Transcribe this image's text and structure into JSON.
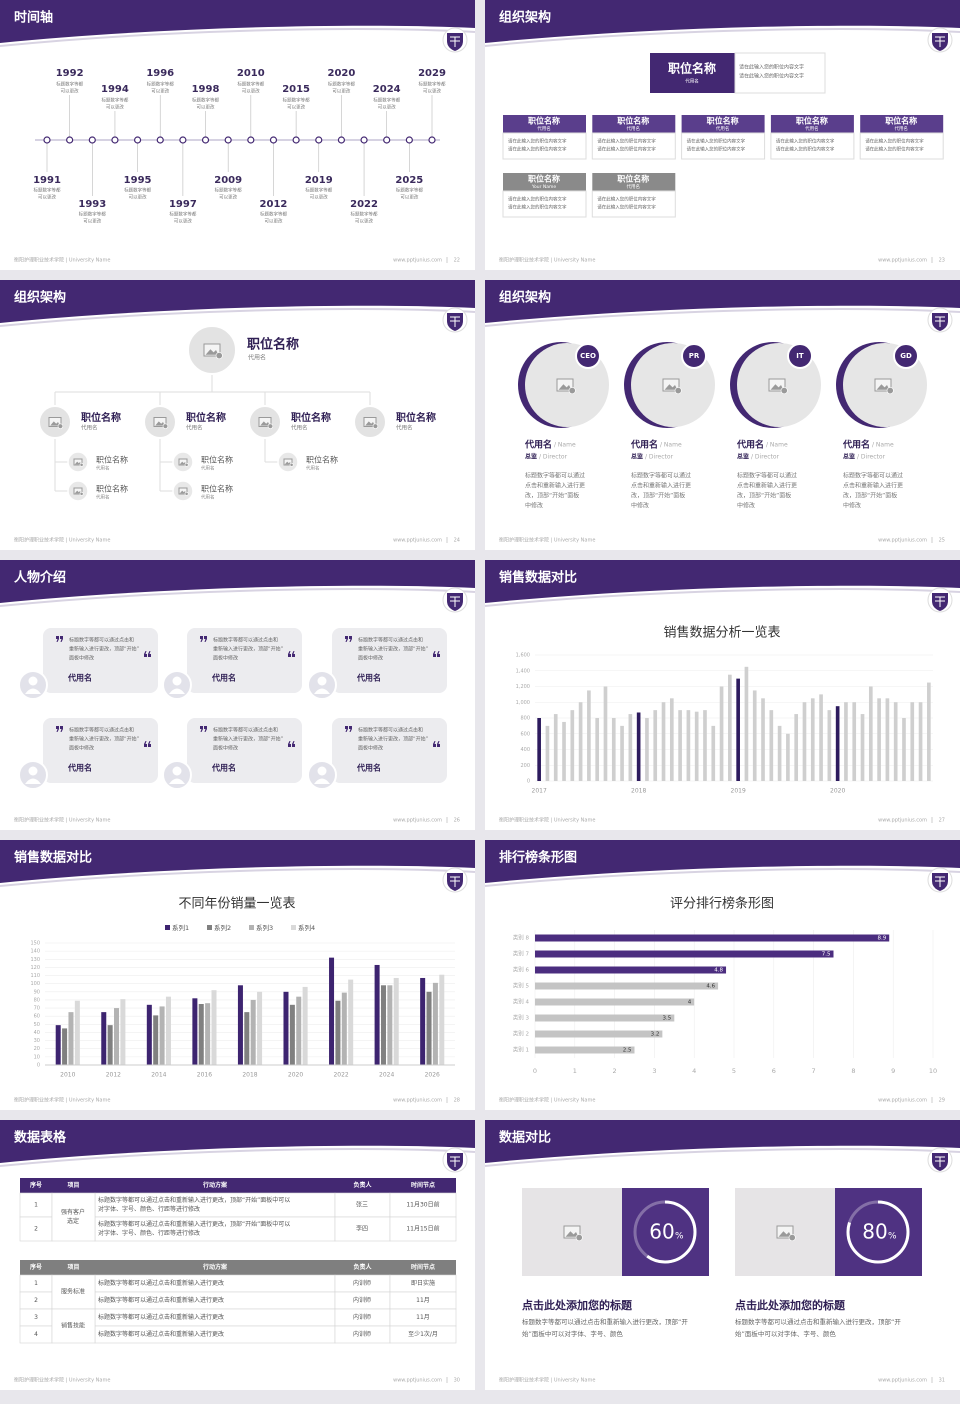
{
  "footer": {
    "left": "衡阳护理职业技术学院 | University Name",
    "url": "www.pptjunius.com"
  },
  "slides": [
    {
      "title": "时间轴",
      "page": "22",
      "events": [
        "1991",
        "1992",
        "1993",
        "1994",
        "1995",
        "1996",
        "1997",
        "1998",
        "2009",
        "2010",
        "2012",
        "2015",
        "2019",
        "2020",
        "2022",
        "2024",
        "2025",
        "2029"
      ],
      "desc": [
        "标题数字等都",
        "可以更改"
      ]
    },
    {
      "title": "组织架构",
      "page": "23",
      "top": {
        "title": "职位名称",
        "sub": "代用名",
        "text": [
          "请在此输入您的职位内容文字",
          "请在此输入您的职位内容文字"
        ]
      },
      "boxes": [
        {
          "title": "职位名称",
          "sub": "代用名",
          "color": "#5a3e8c",
          "text": [
            "请在此输入您的职位内容文字",
            "请在此输入您的职位内容文字"
          ]
        },
        {
          "title": "职位名称",
          "sub": "代用名",
          "color": "#5a3e8c",
          "text": [
            "请在此输入您的职位内容文字",
            "请在此输入您的职位内容文字"
          ]
        },
        {
          "title": "职位名称",
          "sub": "代用名",
          "color": "#5a3e8c",
          "text": [
            "请在此输入您的职位内容文字",
            "请在此输入您的职位内容文字"
          ]
        },
        {
          "title": "职位名称",
          "sub": "代用名",
          "color": "#5a3e8c",
          "text": [
            "请在此输入您的职位内容文字",
            "请在此输入您的职位内容文字"
          ]
        },
        {
          "title": "职位名称",
          "sub": "代用名",
          "color": "#5a3e8c",
          "text": [
            "请在此输入您的职位内容文字",
            "请在此输入您的职位内容文字"
          ]
        },
        {
          "title": "职位名称",
          "sub": "Your Name",
          "color": "#8a8a8a",
          "text": [
            "请在此输入您的职位内容文字",
            "请在此输入您的职位内容文字"
          ]
        },
        {
          "title": "职位名称",
          "sub": "代用名",
          "color": "#8a8a8a",
          "text": [
            "请在此输入您的职位内容文字",
            "请在此输入您的职位内容文字"
          ]
        }
      ]
    },
    {
      "title": "组织架构",
      "page": "24",
      "root": {
        "title": "职位名称",
        "sub": "代用名"
      },
      "nodes": [
        {
          "title": "职位名称",
          "sub": "代用名",
          "children": [
            {
              "title": "职位名称",
              "sub": "代用名"
            },
            {
              "title": "职位名称",
              "sub": "代用名"
            }
          ]
        },
        {
          "title": "职位名称",
          "sub": "代用名",
          "children": [
            {
              "title": "职位名称",
              "sub": "代用名"
            },
            {
              "title": "职位名称",
              "sub": "代用名"
            }
          ]
        },
        {
          "title": "职位名称",
          "sub": "代用名",
          "children": [
            {
              "title": "职位名称",
              "sub": "代用名"
            }
          ]
        },
        {
          "title": "职位名称",
          "sub": "代用名",
          "children": []
        }
      ]
    },
    {
      "title": "组织架构",
      "page": "25",
      "cards": [
        {
          "badge": "CEO",
          "name": "代用名",
          "name_en": "/ Name",
          "role": "总监",
          "role_en": "/ Director",
          "desc": [
            "标题数字等都可以通过",
            "点击和重新输入进行更",
            "改，顶部“开始”面板",
            "中修改"
          ]
        },
        {
          "badge": "PR",
          "name": "代用名",
          "name_en": "/ Name",
          "role": "总监",
          "role_en": "/ Director",
          "desc": [
            "标题数字等都可以通过",
            "点击和重新输入进行更",
            "改，顶部“开始”面板",
            "中修改"
          ]
        },
        {
          "badge": "IT",
          "name": "代用名",
          "name_en": "/ Name",
          "role": "总监",
          "role_en": "/ Director",
          "desc": [
            "标题数字等都可以通过",
            "点击和重新输入进行更",
            "改，顶部“开始”面板",
            "中修改"
          ]
        },
        {
          "badge": "GD",
          "name": "代用名",
          "name_en": "/ Name",
          "role": "总监",
          "role_en": "/ Director",
          "desc": [
            "标题数字等都可以通过",
            "点击和重新输入进行更",
            "改，顶部“开始”面板",
            "中修改"
          ]
        }
      ]
    },
    {
      "title": "人物介绍",
      "page": "26",
      "people": [
        {
          "quote": [
            "标题数字等都可以通过点击和",
            "重新输入进行更改，顶部“开始”",
            "面板中修改"
          ],
          "name": "代用名"
        },
        {
          "quote": [
            "标题数字等都可以通过点击和",
            "重新输入进行更改，顶部“开始”",
            "面板中修改"
          ],
          "name": "代用名"
        },
        {
          "quote": [
            "标题数字等都可以通过点击和",
            "重新输入进行更改，顶部“开始”",
            "面板中修改"
          ],
          "name": "代用名"
        },
        {
          "quote": [
            "标题数字等都可以通过点击和",
            "重新输入进行更改，顶部“开始”",
            "面板中修改"
          ],
          "name": "代用名"
        },
        {
          "quote": [
            "标题数字等都可以通过点击和",
            "重新输入进行更改，顶部“开始”",
            "面板中修改"
          ],
          "name": "代用名"
        },
        {
          "quote": [
            "标题数字等都可以通过点击和",
            "重新输入进行更改，顶部“开始”",
            "面板中修改"
          ],
          "name": "代用名"
        }
      ]
    },
    {
      "title": "销售数据对比",
      "page": "27",
      "chart": {
        "type": "bar",
        "title": "销售数据分析一览表",
        "categories": [
          "2017",
          null,
          null,
          null,
          null,
          null,
          null,
          null,
          null,
          null,
          null,
          null,
          "2018",
          null,
          null,
          null,
          null,
          null,
          null,
          null,
          null,
          null,
          null,
          null,
          "2019",
          null,
          null,
          null,
          null,
          null,
          null,
          null,
          null,
          null,
          null,
          null,
          "2020",
          null,
          null,
          null,
          null,
          null,
          null,
          null,
          null,
          null,
          null,
          null
        ],
        "values": [
          800,
          700,
          850,
          750,
          900,
          1000,
          1150,
          800,
          1200,
          800,
          700,
          850,
          870,
          800,
          900,
          1000,
          1050,
          900,
          900,
          880,
          900,
          700,
          1200,
          1350,
          1300,
          1450,
          1150,
          1050,
          900,
          700,
          600,
          850,
          1000,
          1050,
          1100,
          900,
          950,
          1000,
          1000,
          850,
          1200,
          1050,
          1050,
          1000,
          800,
          1000,
          1000,
          1250
        ],
        "color": "#cfcfcf",
        "highlight": {
          "indices": [
            0,
            12,
            24,
            36
          ],
          "color": "#2d1b5e"
        },
        "ylim": [
          0,
          1600
        ],
        "yticks": [
          0,
          200,
          400,
          600,
          800,
          {
            "value": 1000,
            "label": "1,000"
          },
          {
            "value": 1200,
            "label": "1,200"
          },
          {
            "value": 1400,
            "label": "1,400"
          },
          {
            "value": 1600,
            "label": "1,600"
          }
        ],
        "grid": true
      }
    },
    {
      "title": "销售数据对比",
      "page": "28",
      "chart": {
        "type": "grouped-bar",
        "title": "不同年份销量一览表",
        "categories": [
          "2010",
          "2012",
          "2014",
          "2016",
          "2018",
          "2020",
          "2022",
          "2024",
          "2026"
        ],
        "series": [
          {
            "name": "系列1",
            "color": "#3d2470",
            "values": [
              49,
              65,
              74,
              82,
              98,
              90,
              132,
              123,
              107
            ]
          },
          {
            "name": "系列2",
            "color": "#808080",
            "values": [
              45,
              49,
              61,
              75,
              65,
              74,
              79,
              98,
              90
            ]
          },
          {
            "name": "系列3",
            "color": "#b3b3b3",
            "values": [
              65,
              70,
              72,
              76,
              80,
              84,
              89,
              98,
              101
            ]
          },
          {
            "name": "系列4",
            "color": "#d9d9d9",
            "values": [
              79,
              81,
              84,
              92,
              90,
              96,
              105,
              107,
              111
            ]
          }
        ],
        "ylim": [
          0,
          150
        ],
        "yticks": [
          0,
          10,
          20,
          30,
          40,
          50,
          60,
          70,
          80,
          90,
          100,
          110,
          120,
          130,
          140,
          150
        ],
        "legend": "top",
        "grid": true
      }
    },
    {
      "title": "排行榜条形图",
      "page": "29",
      "chart": {
        "type": "hbar",
        "title": "评分排行榜条形图",
        "categories": [
          "类别 1",
          "类别 2",
          "类别 3",
          "类别 4",
          "类别 5",
          "类别 6",
          "类别 7",
          "类别 8"
        ],
        "values": [
          2.5,
          3.2,
          3.5,
          4,
          4.6,
          4.8,
          7.5,
          8.9
        ],
        "colors": [
          "#c4c4c4",
          "#c4c4c4",
          "#c4c4c4",
          "#c4c4c4",
          "#c4c4c4",
          "#4b2d7f",
          "#4b2d7f",
          "#4b2d7f"
        ],
        "xlim": [
          0,
          10
        ],
        "xticks": [
          0,
          1,
          2,
          3,
          4,
          5,
          6,
          7,
          8,
          9,
          10
        ],
        "grid": true,
        "data_labels": true
      }
    },
    {
      "title": "数据表格",
      "page": "30",
      "tables": [
        {
          "header": [
            "序号",
            "项目",
            "行动方案",
            "负责人",
            "时间节点"
          ],
          "groups": [
            {
              "item": [
                "强有客户",
                "选定"
              ],
              "rows": [
                {
                  "no": "1",
                  "plan": [
                    "标题数字等都可以通过点击和重新输入进行更改，顶部“开始”面板中可以",
                    "对字体、字号、颜色、行距等进行修改"
                  ],
                  "owner": "张三",
                  "time": "11月30日前"
                },
                {
                  "no": "2",
                  "plan": [
                    "标题数字等都可以通过点击和重新输入进行更改，顶部“开始”面板中可以",
                    "对字体、字号、颜色、行距等进行修改"
                  ],
                  "owner": "李四",
                  "time": "11月15日前"
                }
              ]
            }
          ]
        },
        {
          "header": [
            "序号",
            "项目",
            "行动方案",
            "负责人",
            "时间节点"
          ],
          "groups": [
            {
              "item": [
                "服务标准"
              ],
              "rows": [
                {
                  "no": "1",
                  "plan": [
                    "标题数字等都可以通过点击和重新输入进行更改"
                  ],
                  "owner": "内训师",
                  "time": "即日实施"
                },
                {
                  "no": "2",
                  "plan": [
                    "标题数字等都可以通过点击和重新输入进行更改"
                  ],
                  "owner": "内训师",
                  "time": "11月"
                }
              ]
            },
            {
              "item": [
                "销售技能"
              ],
              "rows": [
                {
                  "no": "3",
                  "plan": [
                    "标题数字等都可以通过点击和重新输入进行更改"
                  ],
                  "owner": "内训师",
                  "time": "11月"
                },
                {
                  "no": "4",
                  "plan": [
                    "标题数字等都可以通过点击和重新输入进行更改"
                  ],
                  "owner": "内训师",
                  "time": "至少1次/月"
                }
              ]
            }
          ]
        }
      ]
    },
    {
      "title": "数据对比",
      "page": "31",
      "rings": [
        {
          "value": 60,
          "label": "60",
          "unit": "%",
          "title": "点击此处添加您的标题",
          "desc": [
            "标题数字等都可以通过点击和重新输入进行更改，顶部“开",
            "始”面板中可以对字体、字号、颜色"
          ]
        },
        {
          "value": 80,
          "label": "80",
          "unit": "%",
          "title": "点击此处添加您的标题",
          "desc": [
            "标题数字等都可以通过点击和重新输入进行更改，顶部“开",
            "始”面板中可以对字体、字号、颜色"
          ]
        }
      ]
    }
  ]
}
